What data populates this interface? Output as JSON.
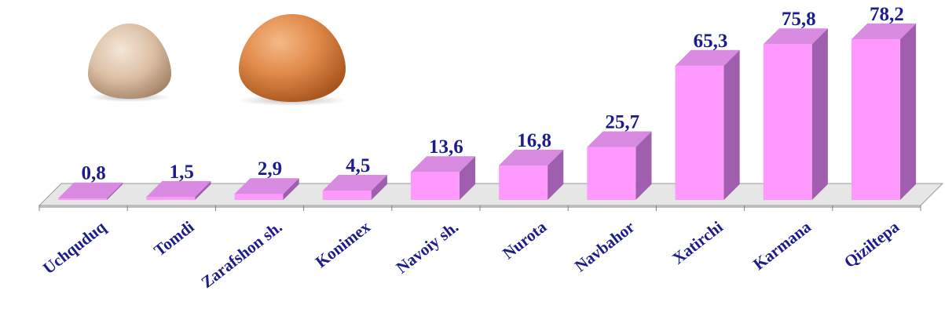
{
  "chart_data": {
    "type": "bar",
    "categories": [
      "Uchquduq",
      "Tomdi",
      "Zarafshon sh.",
      "Konimex",
      "Navoiy sh.",
      "Nurota",
      "Navbahor",
      "Xatirchi",
      "Karmana",
      "Qiziltepa"
    ],
    "values": [
      0.8,
      1.5,
      2.9,
      4.5,
      13.6,
      16.8,
      25.7,
      65.3,
      75.8,
      78.2
    ],
    "value_labels": [
      "0,8",
      "1,5",
      "2,9",
      "4,5",
      "13,6",
      "16,8",
      "25,7",
      "65,3",
      "75,8",
      "78,2"
    ],
    "title": "",
    "xlabel": "",
    "ylabel": "",
    "ylim": [
      0,
      80
    ],
    "grid": false,
    "legend": "none",
    "style": "3d-bar",
    "colors": {
      "bar_front": "#ff99ff",
      "bar_top": "#d88be0",
      "bar_side": "#a05fae",
      "floor_top": "#e6e6e6",
      "floor_front": "#bcbcbc",
      "label": "#1c1c8c"
    },
    "decorations": [
      "white-egg-image",
      "brown-egg-image"
    ]
  }
}
